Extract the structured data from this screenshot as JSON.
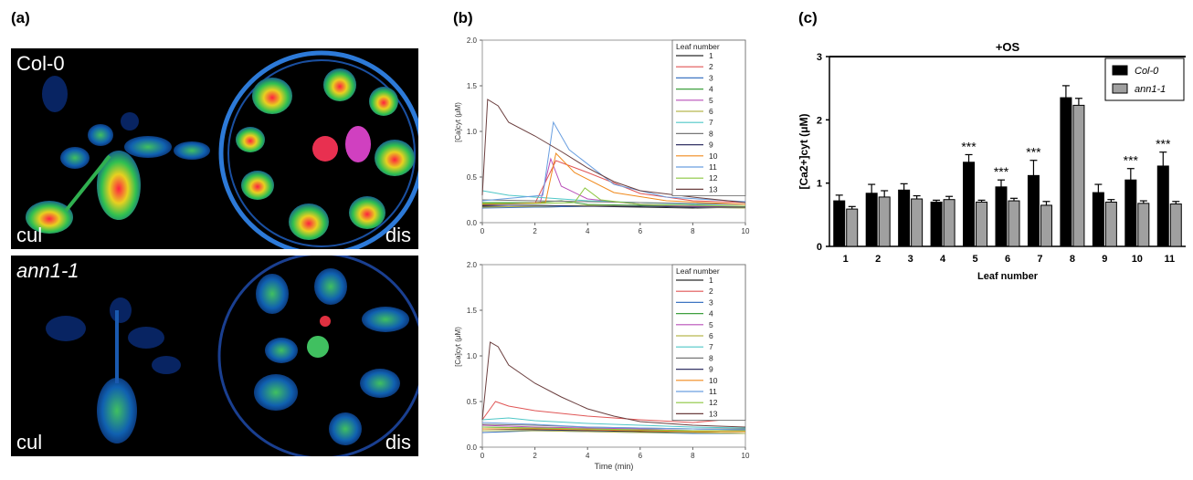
{
  "panel_labels": {
    "a": "(a)",
    "b": "(b)",
    "c": "(c)"
  },
  "panel_a": {
    "top": {
      "genotype": "Col-0",
      "left_label": "cul",
      "right_label": "dis"
    },
    "bottom": {
      "genotype": "ann1-1",
      "left_label": "cul",
      "right_label": "dis"
    }
  },
  "chart_data": [
    {
      "type": "line",
      "panel": "b-top",
      "xlabel": "",
      "ylabel": "[Ca]cyt (μM)",
      "xlim": [
        0,
        10
      ],
      "ylim": [
        0,
        2.0
      ],
      "x_ticks": [
        0,
        2,
        4,
        6,
        8,
        10
      ],
      "y_ticks": [
        "0.0",
        "0.5",
        "1.0",
        "1.5",
        "2.0"
      ],
      "legend_title": "Leaf number",
      "legend_position": "top-right",
      "series": [
        {
          "name": "1",
          "color": "#2b2b2b",
          "points": [
            [
              0,
              0.18
            ],
            [
              2,
              0.17
            ],
            [
              4,
              0.18
            ],
            [
              6,
              0.17
            ],
            [
              8,
              0.16
            ],
            [
              10,
              0.17
            ]
          ]
        },
        {
          "name": "2",
          "color": "#e05555",
          "points": [
            [
              0,
              0.2
            ],
            [
              2,
              0.21
            ],
            [
              2.8,
              0.68
            ],
            [
              4,
              0.55
            ],
            [
              6,
              0.32
            ],
            [
              8,
              0.24
            ],
            [
              10,
              0.22
            ]
          ]
        },
        {
          "name": "3",
          "color": "#3f76c2",
          "points": [
            [
              0,
              0.16
            ],
            [
              2,
              0.17
            ],
            [
              4,
              0.18
            ],
            [
              6,
              0.18
            ],
            [
              8,
              0.17
            ],
            [
              10,
              0.16
            ]
          ]
        },
        {
          "name": "4",
          "color": "#3fa03f",
          "points": [
            [
              0,
              0.22
            ],
            [
              2,
              0.22
            ],
            [
              3,
              0.24
            ],
            [
              4,
              0.2
            ],
            [
              6,
              0.19
            ],
            [
              8,
              0.18
            ],
            [
              10,
              0.18
            ]
          ]
        },
        {
          "name": "5",
          "color": "#b84fb8",
          "points": [
            [
              0,
              0.2
            ],
            [
              2.2,
              0.22
            ],
            [
              2.6,
              0.7
            ],
            [
              3,
              0.4
            ],
            [
              4,
              0.26
            ],
            [
              6,
              0.2
            ],
            [
              8,
              0.18
            ],
            [
              10,
              0.18
            ]
          ]
        },
        {
          "name": "6",
          "color": "#b8b84f",
          "points": [
            [
              0,
              0.17
            ],
            [
              2,
              0.18
            ],
            [
              4,
              0.19
            ],
            [
              6,
              0.18
            ],
            [
              8,
              0.17
            ],
            [
              10,
              0.16
            ]
          ]
        },
        {
          "name": "7",
          "color": "#4fc7c7",
          "points": [
            [
              0,
              0.35
            ],
            [
              1,
              0.3
            ],
            [
              2,
              0.28
            ],
            [
              4,
              0.24
            ],
            [
              6,
              0.22
            ],
            [
              8,
              0.2
            ],
            [
              10,
              0.2
            ]
          ]
        },
        {
          "name": "8",
          "color": "#777777",
          "points": [
            [
              0,
              0.25
            ],
            [
              2,
              0.24
            ],
            [
              4,
              0.23
            ],
            [
              6,
              0.22
            ],
            [
              8,
              0.21
            ],
            [
              10,
              0.2
            ]
          ]
        },
        {
          "name": "9",
          "color": "#333366",
          "points": [
            [
              0,
              0.19
            ],
            [
              2,
              0.19
            ],
            [
              4,
              0.18
            ],
            [
              6,
              0.18
            ],
            [
              8,
              0.17
            ],
            [
              10,
              0.17
            ]
          ]
        },
        {
          "name": "10",
          "color": "#f08a1c",
          "points": [
            [
              0,
              0.2
            ],
            [
              2.4,
              0.22
            ],
            [
              2.8,
              0.76
            ],
            [
              3.5,
              0.55
            ],
            [
              5,
              0.33
            ],
            [
              7,
              0.24
            ],
            [
              10,
              0.2
            ]
          ]
        },
        {
          "name": "11",
          "color": "#6a9fe0",
          "points": [
            [
              0,
              0.24
            ],
            [
              2.3,
              0.3
            ],
            [
              2.7,
              1.1
            ],
            [
              3.3,
              0.8
            ],
            [
              5,
              0.42
            ],
            [
              7,
              0.28
            ],
            [
              10,
              0.23
            ]
          ]
        },
        {
          "name": "12",
          "color": "#8cc63f",
          "points": [
            [
              0,
              0.21
            ],
            [
              2,
              0.21
            ],
            [
              3.5,
              0.22
            ],
            [
              3.9,
              0.38
            ],
            [
              4.5,
              0.25
            ],
            [
              6,
              0.2
            ],
            [
              10,
              0.18
            ]
          ]
        },
        {
          "name": "13",
          "color": "#6b3f3f",
          "points": [
            [
              0,
              0.3
            ],
            [
              0.2,
              1.35
            ],
            [
              0.6,
              1.28
            ],
            [
              1,
              1.1
            ],
            [
              2,
              0.95
            ],
            [
              3,
              0.78
            ],
            [
              4,
              0.6
            ],
            [
              5,
              0.45
            ],
            [
              6,
              0.35
            ],
            [
              8,
              0.28
            ],
            [
              10,
              0.22
            ]
          ]
        }
      ]
    },
    {
      "type": "line",
      "panel": "b-bottom",
      "xlabel": "Time (min)",
      "ylabel": "[Ca]cyt (μM)",
      "xlim": [
        0,
        10
      ],
      "ylim": [
        0,
        2.0
      ],
      "x_ticks": [
        0,
        2,
        4,
        6,
        8,
        10
      ],
      "y_ticks": [
        "0.0",
        "0.5",
        "1.0",
        "1.5",
        "2.0"
      ],
      "legend_title": "Leaf number",
      "legend_position": "top-right",
      "series": [
        {
          "name": "1",
          "color": "#2b2b2b",
          "points": [
            [
              0,
              0.2
            ],
            [
              2,
              0.2
            ],
            [
              4,
              0.18
            ],
            [
              6,
              0.17
            ],
            [
              8,
              0.16
            ],
            [
              10,
              0.15
            ]
          ]
        },
        {
          "name": "2",
          "color": "#e05555",
          "points": [
            [
              0,
              0.3
            ],
            [
              0.5,
              0.5
            ],
            [
              1,
              0.45
            ],
            [
              2,
              0.4
            ],
            [
              4,
              0.34
            ],
            [
              6,
              0.3
            ],
            [
              8,
              0.27
            ],
            [
              10,
              0.32
            ]
          ]
        },
        {
          "name": "3",
          "color": "#3f76c2",
          "points": [
            [
              0,
              0.16
            ],
            [
              2,
              0.18
            ],
            [
              4,
              0.17
            ],
            [
              6,
              0.16
            ],
            [
              8,
              0.15
            ],
            [
              10,
              0.15
            ]
          ]
        },
        {
          "name": "4",
          "color": "#3fa03f",
          "points": [
            [
              0,
              0.22
            ],
            [
              2,
              0.21
            ],
            [
              4,
              0.2
            ],
            [
              6,
              0.19
            ],
            [
              8,
              0.18
            ],
            [
              10,
              0.18
            ]
          ]
        },
        {
          "name": "5",
          "color": "#b84fb8",
          "points": [
            [
              0,
              0.24
            ],
            [
              2,
              0.22
            ],
            [
              4,
              0.21
            ],
            [
              6,
              0.2
            ],
            [
              8,
              0.2
            ],
            [
              10,
              0.19
            ]
          ]
        },
        {
          "name": "6",
          "color": "#b8b84f",
          "points": [
            [
              0,
              0.18
            ],
            [
              2,
              0.18
            ],
            [
              4,
              0.17
            ],
            [
              6,
              0.16
            ],
            [
              8,
              0.16
            ],
            [
              10,
              0.15
            ]
          ]
        },
        {
          "name": "7",
          "color": "#4fc7c7",
          "points": [
            [
              0,
              0.3
            ],
            [
              1,
              0.32
            ],
            [
              2,
              0.29
            ],
            [
              4,
              0.26
            ],
            [
              6,
              0.24
            ],
            [
              8,
              0.22
            ],
            [
              10,
              0.21
            ]
          ]
        },
        {
          "name": "8",
          "color": "#777777",
          "points": [
            [
              0,
              0.25
            ],
            [
              2,
              0.24
            ],
            [
              4,
              0.22
            ],
            [
              6,
              0.21
            ],
            [
              8,
              0.2
            ],
            [
              10,
              0.2
            ]
          ]
        },
        {
          "name": "9",
          "color": "#333366",
          "points": [
            [
              0,
              0.2
            ],
            [
              2,
              0.19
            ],
            [
              4,
              0.18
            ],
            [
              6,
              0.18
            ],
            [
              8,
              0.17
            ],
            [
              10,
              0.17
            ]
          ]
        },
        {
          "name": "10",
          "color": "#f08a1c",
          "points": [
            [
              0,
              0.2
            ],
            [
              2,
              0.2
            ],
            [
              4,
              0.19
            ],
            [
              6,
              0.18
            ],
            [
              8,
              0.17
            ],
            [
              10,
              0.17
            ]
          ]
        },
        {
          "name": "11",
          "color": "#6a9fe0",
          "points": [
            [
              0,
              0.27
            ],
            [
              2,
              0.25
            ],
            [
              4,
              0.22
            ],
            [
              6,
              0.21
            ],
            [
              8,
              0.2
            ],
            [
              10,
              0.19
            ]
          ]
        },
        {
          "name": "12",
          "color": "#8cc63f",
          "points": [
            [
              0,
              0.22
            ],
            [
              2,
              0.21
            ],
            [
              4,
              0.2
            ],
            [
              6,
              0.19
            ],
            [
              8,
              0.18
            ],
            [
              10,
              0.18
            ]
          ]
        },
        {
          "name": "13",
          "color": "#6b3f3f",
          "points": [
            [
              0,
              0.3
            ],
            [
              0.3,
              1.15
            ],
            [
              0.6,
              1.1
            ],
            [
              1,
              0.9
            ],
            [
              2,
              0.7
            ],
            [
              3,
              0.55
            ],
            [
              4,
              0.42
            ],
            [
              5,
              0.34
            ],
            [
              6,
              0.28
            ],
            [
              8,
              0.24
            ],
            [
              10,
              0.22
            ]
          ]
        }
      ]
    },
    {
      "type": "bar",
      "panel": "c",
      "title": "+OS",
      "xlabel": "Leaf number",
      "ylabel": "[Ca2+]cyt (μM)",
      "ylim": [
        0,
        3
      ],
      "y_ticks": [
        "0",
        "1",
        "2",
        "3"
      ],
      "categories": [
        "1",
        "2",
        "3",
        "4",
        "5",
        "6",
        "7",
        "8",
        "9",
        "10",
        "11"
      ],
      "legend_position": "top-right",
      "series": [
        {
          "name": "Col-0",
          "color": "#000000",
          "values": [
            0.72,
            0.84,
            0.89,
            0.7,
            1.33,
            0.94,
            1.12,
            2.35,
            0.85,
            1.05,
            1.27
          ],
          "errors": [
            0.09,
            0.14,
            0.1,
            0.03,
            0.12,
            0.11,
            0.24,
            0.19,
            0.13,
            0.18,
            0.22
          ]
        },
        {
          "name": "ann1-1",
          "color": "#a0a0a0",
          "values": [
            0.59,
            0.78,
            0.75,
            0.74,
            0.7,
            0.72,
            0.65,
            2.23,
            0.7,
            0.68,
            0.67
          ],
          "errors": [
            0.04,
            0.1,
            0.05,
            0.05,
            0.03,
            0.04,
            0.06,
            0.11,
            0.04,
            0.04,
            0.04
          ]
        }
      ],
      "significance": [
        "",
        "",
        "",
        "",
        "***",
        "***",
        "***",
        "",
        "",
        "***",
        "***"
      ]
    }
  ]
}
